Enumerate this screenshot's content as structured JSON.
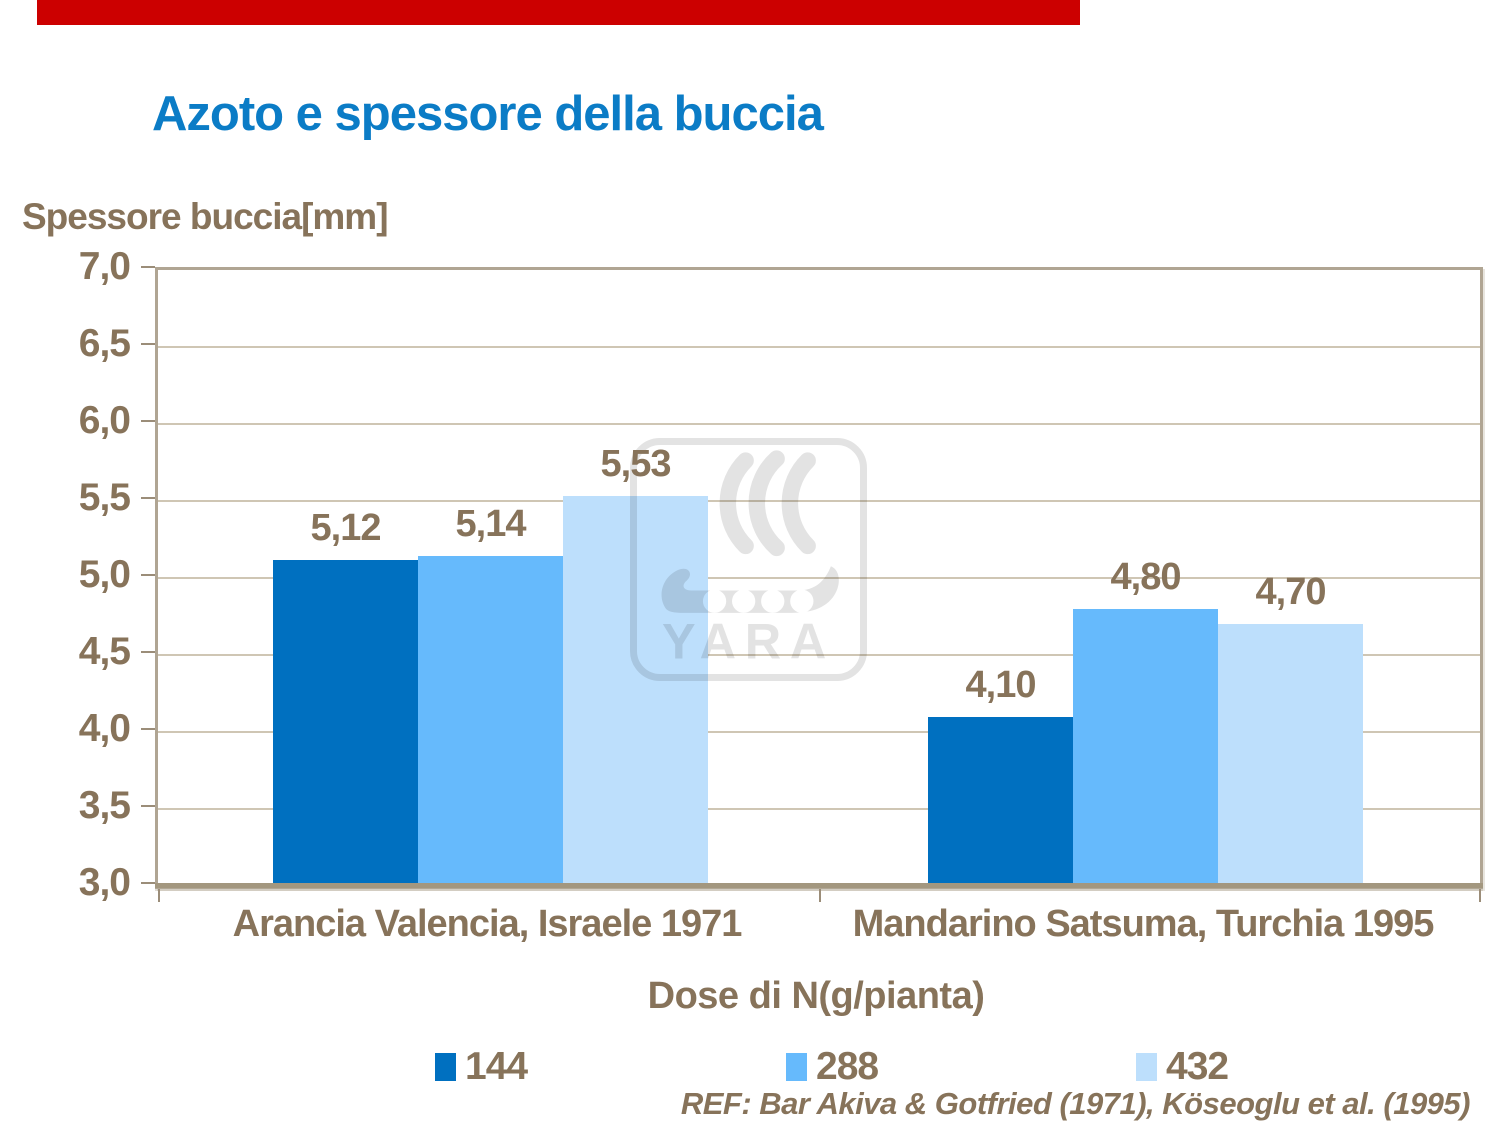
{
  "slide": {
    "title": "Azoto e spessore della buccia",
    "footnote": "REF: Bar Akiva & Gotfried (1971), Köseoglu et al. (1995)"
  },
  "watermark": {
    "name": "yara-logo",
    "text": "YARA"
  },
  "colors": {
    "background": "#FFFFFF",
    "accent_bar": "#CC0000",
    "title": "#0B7CC6",
    "text": "#87735A",
    "grid": "#CFC6B4",
    "frame": "#B0A593",
    "baseline": "#A3977F",
    "tick": "#9B8D79",
    "watermark": "#E3E3E3"
  },
  "chart_data": {
    "type": "bar",
    "title": "Azoto e spessore della buccia",
    "ylabel": "Spessore buccia[mm]",
    "xlabel": "Dose di N(g/pianta)",
    "ylim": [
      3.0,
      7.0
    ],
    "ytick_step": 0.5,
    "ytick_labels": [
      "7,0",
      "6,5",
      "6,0",
      "5,5",
      "5,0",
      "4,5",
      "4,0",
      "3,5",
      "3,0"
    ],
    "grid": true,
    "legend_position": "bottom",
    "categories": [
      "Arancia Valencia, Israele 1971",
      "Mandarino Satsuma, Turchia 1995"
    ],
    "series": [
      {
        "name": "144",
        "color": "#0070C0",
        "values": [
          5.12,
          4.1
        ],
        "value_labels": [
          "5,12",
          "4,10"
        ]
      },
      {
        "name": "288",
        "color": "#66BAFC",
        "values": [
          5.14,
          4.8
        ],
        "value_labels": [
          "5,14",
          "4,80"
        ]
      },
      {
        "name": "432",
        "color": "#BDDFFC",
        "values": [
          5.53,
          4.7
        ],
        "value_labels": [
          "5,53",
          "4,70"
        ]
      }
    ]
  }
}
